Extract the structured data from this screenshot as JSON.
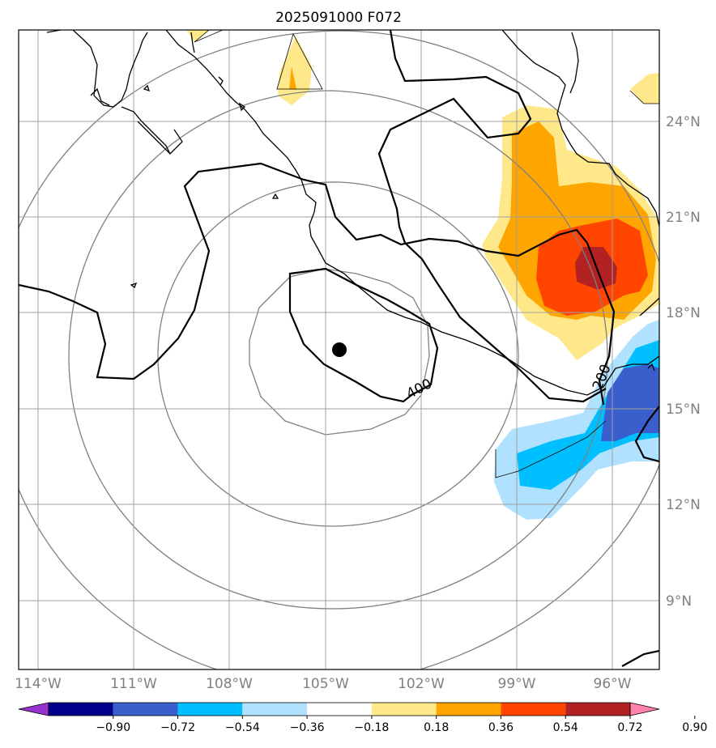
{
  "title": "2025091000 F072",
  "lat_labels": [
    "24°N",
    "21°N",
    "18°N",
    "15°N",
    "12°N",
    "9°N"
  ],
  "lon_labels": [
    "114°W",
    "111°W",
    "108°W",
    "105°W",
    "102°W",
    "99°W",
    "96°W"
  ],
  "contour_labels": [
    "400",
    "200"
  ],
  "colorbar": {
    "colors": [
      "#9932cc",
      "#00008b",
      "#3a5fcd",
      "#00bfff",
      "#b0e2ff",
      "#ffffff",
      "#ffe88a",
      "#ffa500",
      "#ff4500",
      "#b22222",
      "#ff82ab"
    ],
    "tick_labels": [
      "−0.90",
      "−0.72",
      "−0.54",
      "−0.36",
      "−0.18",
      "0.18",
      "0.36",
      "0.54",
      "0.72",
      "0.90"
    ]
  },
  "chart_data": {
    "type": "map",
    "title": "2025091000 F072",
    "lat_range": [
      7,
      27
    ],
    "lon_range": [
      -114.6,
      -94.6
    ],
    "center_marker": {
      "lat": 16.9,
      "lon": -104.6
    },
    "contour_levels_labeled": [
      400,
      200
    ],
    "colorbar_levels": [
      -0.9,
      -0.72,
      -0.54,
      -0.36,
      -0.18,
      0.18,
      0.36,
      0.54,
      0.72,
      0.9
    ]
  }
}
